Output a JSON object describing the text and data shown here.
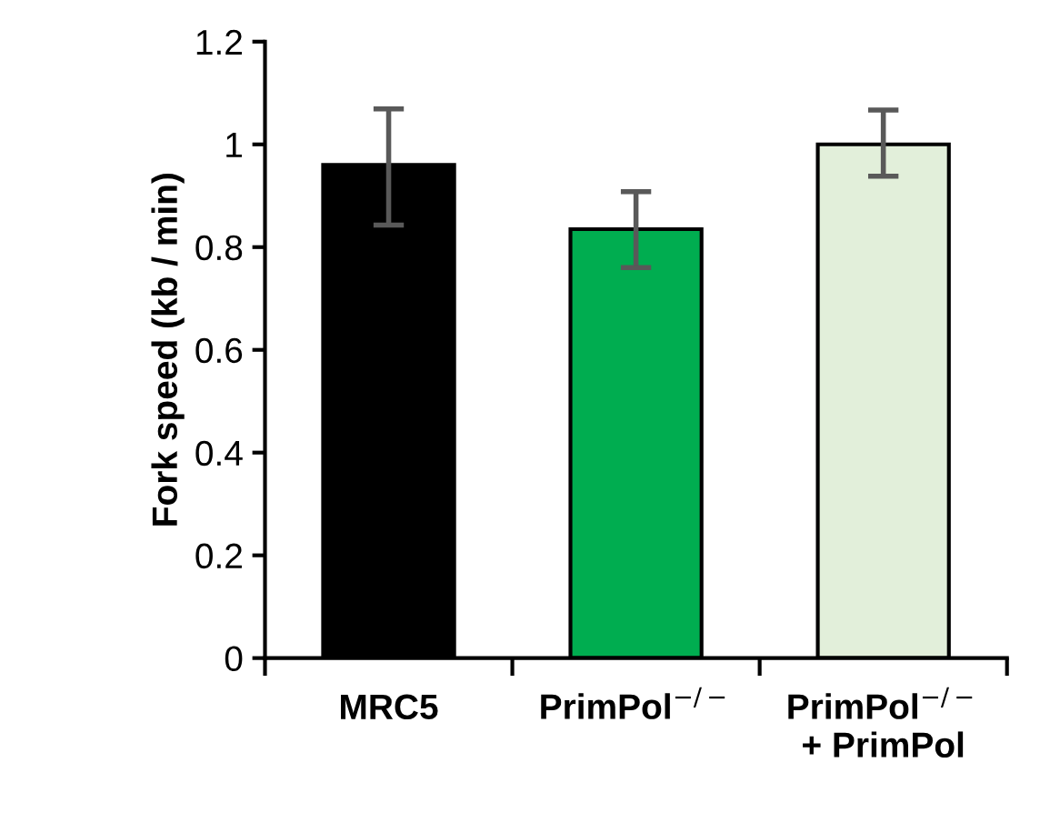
{
  "chart_data": {
    "type": "bar",
    "ylabel": "Fork speed (kb / min)",
    "categories": [
      "MRC5",
      "PrimPol$^{−/−}$",
      "PrimPol$^{−/−}$\n+ PrimPol"
    ],
    "values": [
      0.96,
      0.835,
      1.0
    ],
    "colors": [
      "#000000",
      "#00ad50",
      "#e2efda"
    ],
    "errors": [
      [
        0.843,
        1.069
      ],
      [
        0.76,
        0.908
      ],
      [
        0.938,
        1.067
      ]
    ],
    "ylim": [
      0,
      1.2
    ],
    "yticks": [
      0,
      0.2,
      0.4,
      0.6,
      0.8,
      1,
      1.2
    ],
    "grid": false,
    "legend": false
  }
}
